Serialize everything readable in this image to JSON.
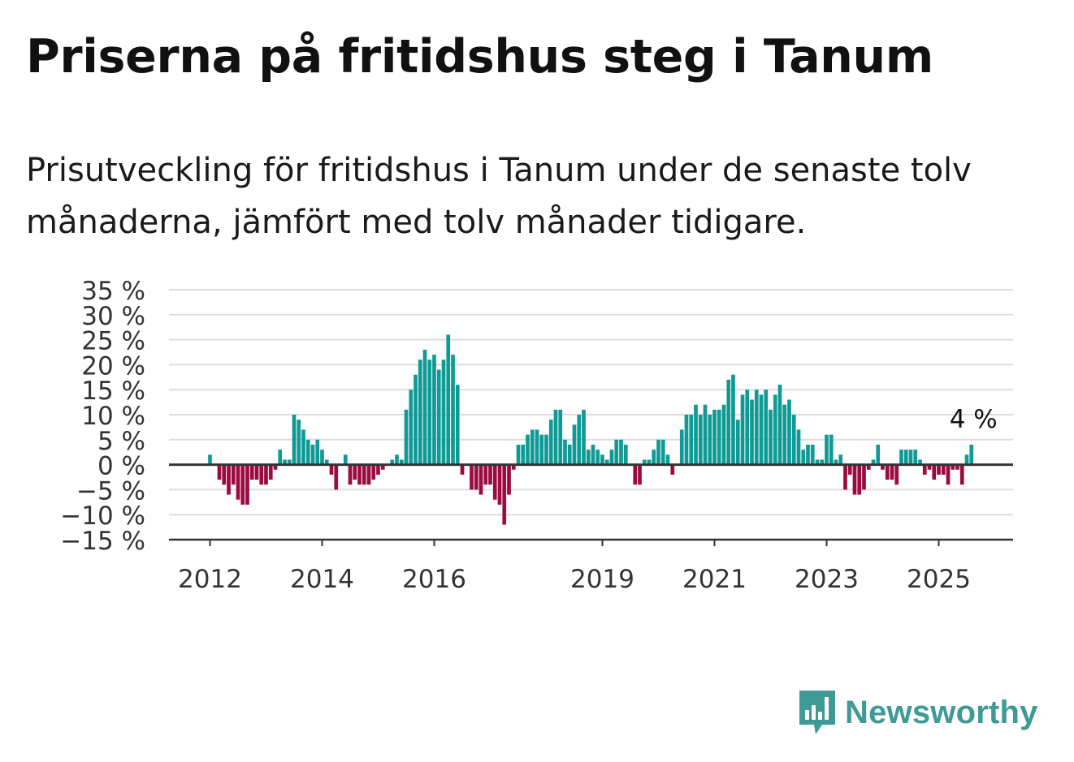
{
  "title": "Priserna på fritidshus steg i Tanum",
  "subtitle": "Prisutveckling för fritidshus i Tanum under de senaste tolv månaderna, jämfört med tolv månader tidigare.",
  "brand": {
    "name": "Newsworthy",
    "icon": "newsworthy-logo-icon",
    "color": "#3f9a96"
  },
  "colors": {
    "positive": "#0f9a96",
    "negative": "#9b0a40",
    "grid": "#dddddd",
    "axis": "#333333"
  },
  "chart_data": {
    "type": "bar",
    "title": "Priserna på fritidshus steg i Tanum",
    "xlabel": "",
    "ylabel": "",
    "ylim": [
      -15,
      35
    ],
    "y_ticks": [
      35,
      30,
      25,
      20,
      15,
      10,
      5,
      0,
      -5,
      -10,
      -15
    ],
    "y_tick_labels": [
      "35 %",
      "30 %",
      "25 %",
      "20 %",
      "15 %",
      "10 %",
      "5 %",
      "0 %",
      "−5 %",
      "−10 %",
      "−15 %"
    ],
    "x_ticks": [
      "2012",
      "2014",
      "2016",
      "2019",
      "2021",
      "2023",
      "2025"
    ],
    "x_tick_months": [
      "2012-01",
      "2014-01",
      "2016-01",
      "2019-01",
      "2021-01",
      "2023-01",
      "2025-01"
    ],
    "grid": true,
    "annotation": {
      "text": "4 %",
      "month": "2025-08"
    },
    "series": [
      {
        "start_month": "2012-01",
        "values": [
          2,
          0,
          -3,
          -4,
          -6,
          -4,
          -7,
          -8,
          -8,
          -3,
          -3,
          -4,
          -4,
          -3,
          -1,
          3,
          1,
          1,
          10,
          9,
          7,
          5,
          4,
          5,
          3,
          1,
          -2,
          -5,
          0,
          2,
          -4,
          -3,
          -4,
          -4,
          -4,
          -3,
          -2,
          -1,
          0,
          1,
          2,
          1,
          11,
          15,
          18,
          21,
          23,
          21,
          22,
          19,
          21,
          26,
          22,
          16,
          -2,
          0,
          -5,
          -5,
          -6,
          -4,
          -4,
          -7,
          -8,
          -12,
          -6,
          -1,
          4,
          4,
          6,
          7,
          7,
          6,
          6,
          9,
          11,
          11,
          5,
          4,
          8,
          10,
          11,
          3,
          4,
          3,
          2,
          1,
          3,
          5,
          5,
          4,
          0,
          -4,
          -4,
          1,
          1,
          3,
          5,
          5,
          2,
          -2,
          0,
          7,
          10,
          10,
          12,
          10,
          12,
          10,
          11,
          11,
          12,
          17,
          18,
          9,
          14,
          15,
          13,
          15,
          14,
          15,
          11,
          14,
          16,
          12,
          13,
          10,
          7,
          3,
          4,
          4,
          1,
          1,
          6,
          6,
          1,
          2,
          -5,
          -2,
          -6,
          -6,
          -5,
          -1,
          1,
          4,
          -1,
          -3,
          -3,
          -4,
          3,
          3,
          3,
          3,
          1,
          -2,
          -1,
          -3,
          -2,
          -2,
          -4,
          -1,
          -1,
          -4,
          2,
          4
        ]
      }
    ]
  }
}
